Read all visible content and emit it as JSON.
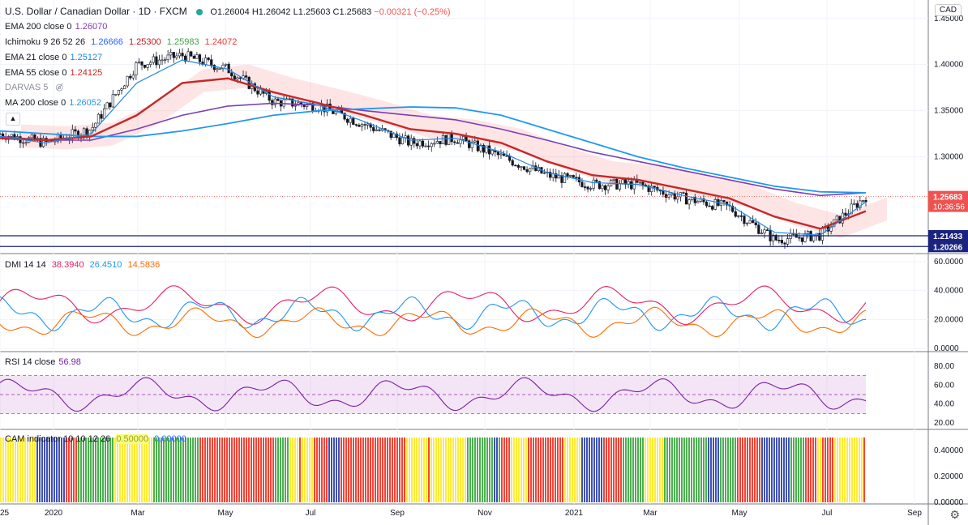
{
  "header": {
    "symbol_title": "U.S. Dollar / Canadian Dollar · 1D · FXCM",
    "ohlc": {
      "o": "O1.26004",
      "h": "H1.26042",
      "l": "L1.25603",
      "c": "C1.25683",
      "change": "−0.00321 (−0.25%)"
    },
    "currency_button": "CAD",
    "collapse_icon": "chevron-up-icon",
    "settings_icon": "gear-icon"
  },
  "legends": {
    "ema200": {
      "label": "EMA 200 close 0",
      "value": "1.26070",
      "color": "#7b3fb5"
    },
    "ichimoku": {
      "label": "Ichimoku 9 26 52 26",
      "values": [
        "1.26666",
        "1.25300",
        "1.25983",
        "1.24072"
      ],
      "colors": [
        "#2962ff",
        "#b71c1c",
        "#43a047",
        "#e53935"
      ]
    },
    "ema21": {
      "label": "EMA 21 close 0",
      "value": "1.25127",
      "color": "#1e88e5"
    },
    "ema55": {
      "label": "EMA 55 close 0",
      "value": "1.24125",
      "color": "#c62828"
    },
    "darvas": {
      "label": "DARVAS 5",
      "icon": "eye-hidden-icon"
    },
    "ma200": {
      "label": "MA 200 close 0",
      "value": "1.26052",
      "color": "#2196f3"
    },
    "dmi": {
      "label": "DMI 14 14",
      "values": [
        "38.3940",
        "26.4510",
        "14.5836"
      ],
      "colors": [
        "#e91e63",
        "#2196f3",
        "#ff6d00"
      ]
    },
    "rsi": {
      "label": "RSI 14 close",
      "value": "56.98",
      "color": "#7b1fa2"
    },
    "cam": {
      "label": "CAM indicator 10 10 12 26",
      "values": [
        "0.50000",
        "0.00000"
      ],
      "colors": [
        "#cddc39",
        "#2962ff"
      ]
    }
  },
  "price_axis": {
    "ticks": [
      "1.45000",
      "1.40000",
      "1.35000",
      "1.30000"
    ],
    "current_price": "1.25683",
    "countdown": "10:36:56",
    "levels": [
      "1.21433",
      "1.20266"
    ]
  },
  "dmi_axis": {
    "ticks": [
      "60.0000",
      "40.0000",
      "20.0000",
      "0.0000"
    ]
  },
  "rsi_axis": {
    "ticks": [
      "80.00",
      "60.00",
      "40.00",
      "20.00"
    ]
  },
  "cam_axis": {
    "ticks": [
      "0.40000",
      "0.20000",
      "0.00000"
    ]
  },
  "time_axis": {
    "ticks": [
      "25",
      "2020",
      "Mar",
      "May",
      "Jul",
      "Sep",
      "Nov",
      "2021",
      "Mar",
      "May",
      "Jul",
      "Sep"
    ]
  },
  "chart_data": {
    "type": "line",
    "series": [
      {
        "name": "USD/CAD close (approx)",
        "x": [
          "2019-12",
          "2020-01",
          "2020-02",
          "2020-03",
          "2020-04",
          "2020-05",
          "2020-06",
          "2020-07",
          "2020-08",
          "2020-09",
          "2020-10",
          "2020-11",
          "2020-12",
          "2021-01",
          "2021-02",
          "2021-03",
          "2021-04",
          "2021-05",
          "2021-06",
          "2021-07"
        ],
        "values": [
          1.325,
          1.315,
          1.33,
          1.4,
          1.41,
          1.395,
          1.36,
          1.355,
          1.335,
          1.315,
          1.32,
          1.3,
          1.28,
          1.27,
          1.27,
          1.255,
          1.245,
          1.21,
          1.215,
          1.257
        ]
      },
      {
        "name": "EMA 200 close 0",
        "values": [
          1.322,
          1.318,
          1.318,
          1.33,
          1.345,
          1.355,
          1.358,
          1.356,
          1.35,
          1.345,
          1.34,
          1.33,
          1.318,
          1.305,
          1.295,
          1.285,
          1.275,
          1.265,
          1.258,
          1.261
        ]
      },
      {
        "name": "MA 200 close 0",
        "values": [
          1.328,
          1.325,
          1.322,
          1.322,
          1.328,
          1.336,
          1.345,
          1.35,
          1.352,
          1.354,
          1.353,
          1.345,
          1.33,
          1.315,
          1.3,
          1.288,
          1.278,
          1.268,
          1.262,
          1.261
        ]
      },
      {
        "name": "EMA 55 close 0",
        "values": [
          1.32,
          1.318,
          1.322,
          1.345,
          1.38,
          1.385,
          1.37,
          1.358,
          1.345,
          1.33,
          1.325,
          1.315,
          1.295,
          1.28,
          1.275,
          1.265,
          1.255,
          1.235,
          1.222,
          1.241
        ]
      },
      {
        "name": "EMA 21 close 0",
        "values": [
          1.322,
          1.315,
          1.325,
          1.38,
          1.405,
          1.395,
          1.365,
          1.356,
          1.338,
          1.318,
          1.32,
          1.305,
          1.283,
          1.272,
          1.27,
          1.258,
          1.248,
          1.218,
          1.215,
          1.251
        ]
      }
    ],
    "ylim": [
      1.195,
      1.47
    ],
    "horizontal_levels": [
      1.21433,
      1.20266
    ]
  }
}
